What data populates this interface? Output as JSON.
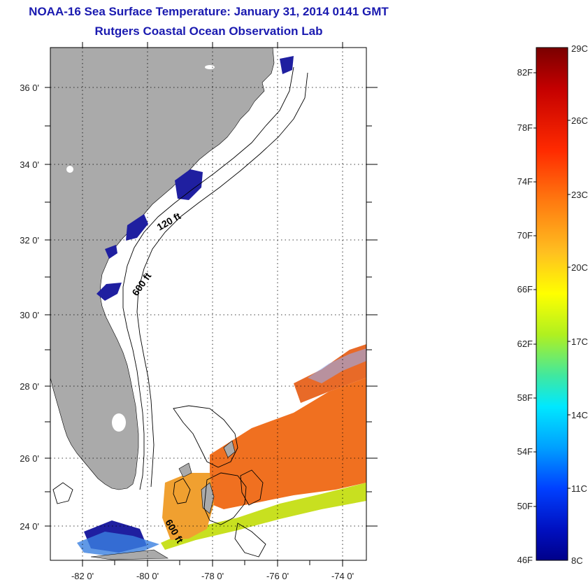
{
  "header": {
    "title": "NOAA-16 Sea Surface Temperature:  January 31, 2014 0141 GMT",
    "subtitle": "Rutgers Coastal Ocean Observation Lab"
  },
  "map": {
    "lat_labels": [
      "36 0'",
      "34 0'",
      "32 0'",
      "30 0'",
      "28 0'",
      "26 0'",
      "24 0'"
    ],
    "lon_labels": [
      "-82 0'",
      "-80 0'",
      "-78 0'",
      "-76 0'",
      "-74 0'"
    ],
    "contours": {
      "shallow": "120 ft",
      "deep": "600 ft",
      "south": "600 ft"
    },
    "colors": {
      "land": "#aaaaaa",
      "cloud_mask": "#1f1fa0",
      "sst_warm": "#f07020",
      "sst_mid": "#c8e020",
      "contour": "#000000"
    }
  },
  "colorbar": {
    "f_labels": [
      "82F",
      "78F",
      "74F",
      "70F",
      "66F",
      "62F",
      "58F",
      "54F",
      "50F",
      "46F"
    ],
    "c_labels": [
      "29C",
      "26C",
      "23C",
      "20C",
      "17C",
      "14C",
      "11C",
      "8C"
    ],
    "stops": [
      "#7a0000",
      "#c40000",
      "#ff2a00",
      "#ff7a10",
      "#ffc020",
      "#ffff00",
      "#b0f020",
      "#40e8a0",
      "#00e8ff",
      "#00a0ff",
      "#0040ff",
      "#0010c0",
      "#00008a"
    ]
  }
}
